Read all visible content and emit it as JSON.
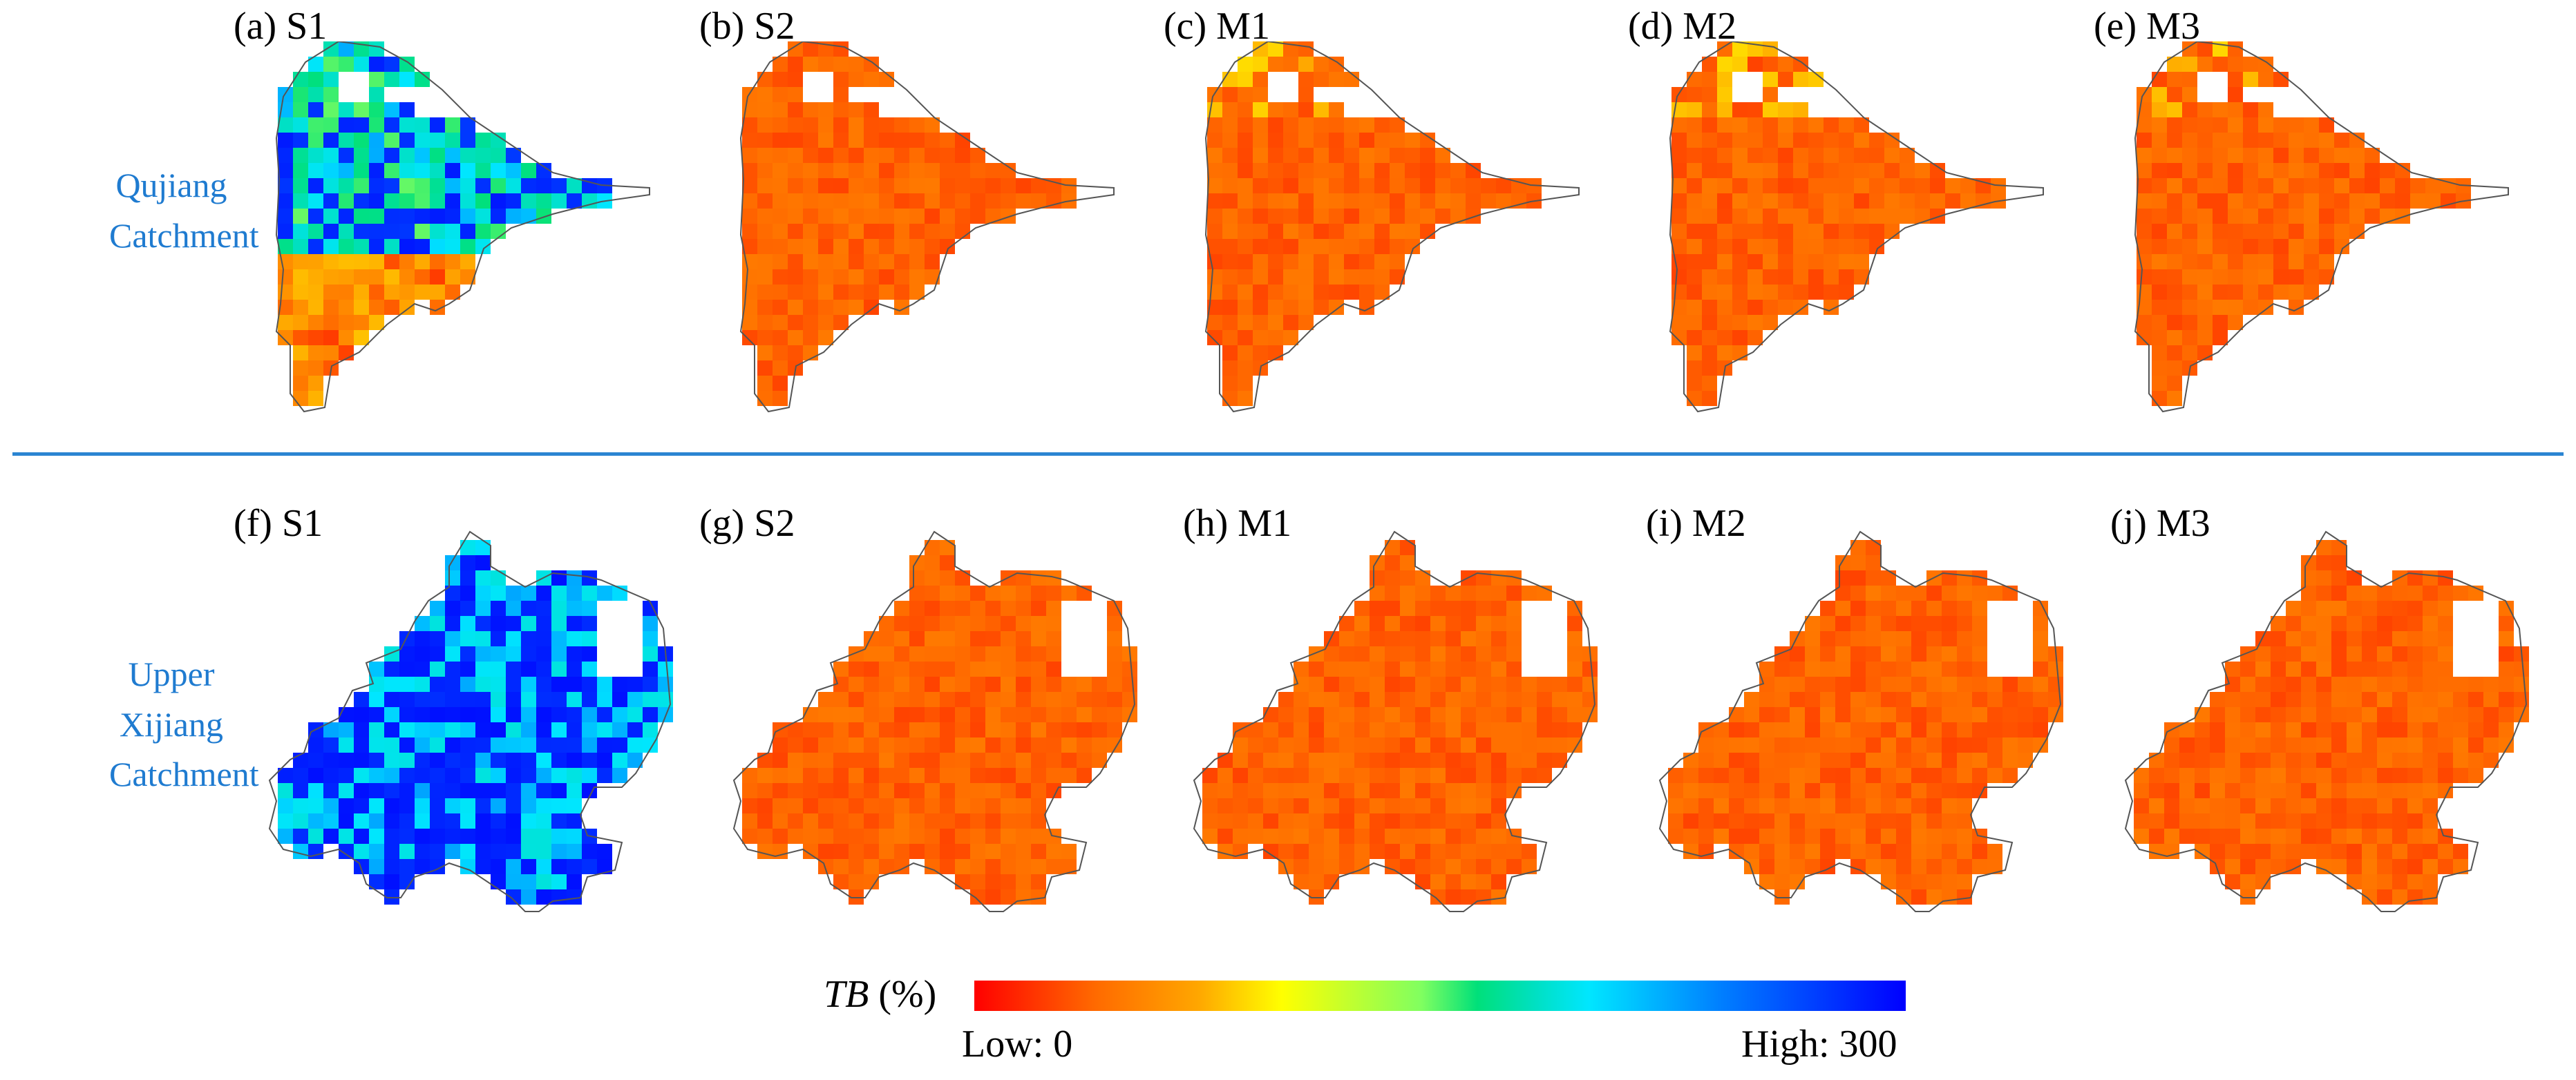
{
  "figure": {
    "rows": [
      {
        "label_lines": [
          "Qujiang",
          "Catchment"
        ],
        "panels": [
          {
            "label": "(a) S1",
            "scheme": "S1"
          },
          {
            "label": "(b) S2",
            "scheme": "S2"
          },
          {
            "label": "(c) M1",
            "scheme": "M1"
          },
          {
            "label": "(d) M2",
            "scheme": "M2"
          },
          {
            "label": "(e) M3",
            "scheme": "M3"
          }
        ]
      },
      {
        "label_lines": [
          "Upper",
          "Xijiang",
          "Catchment"
        ],
        "panels": [
          {
            "label": "(f) S1",
            "scheme": "S1"
          },
          {
            "label": "(g) S2",
            "scheme": "S2"
          },
          {
            "label": "(h) M1",
            "scheme": "M1"
          },
          {
            "label": "(i) M2",
            "scheme": "M2"
          },
          {
            "label": "(j) M3",
            "scheme": "M3"
          }
        ]
      }
    ]
  },
  "colorbar": {
    "variable": "TB",
    "unit": "(%)",
    "low_label": "Low: 0",
    "high_label": "High: 300",
    "min": 0,
    "max": 300,
    "stops": [
      "#ff0000",
      "#ff6a00",
      "#ffa600",
      "#ffff00",
      "#80ff60",
      "#00e07a",
      "#00e0c0",
      "#00e6ff",
      "#0080ff",
      "#0000ff"
    ]
  },
  "colors": {
    "row_label": "#1f7bd0",
    "divider": "#2b85d2",
    "outline": "#555555"
  }
}
